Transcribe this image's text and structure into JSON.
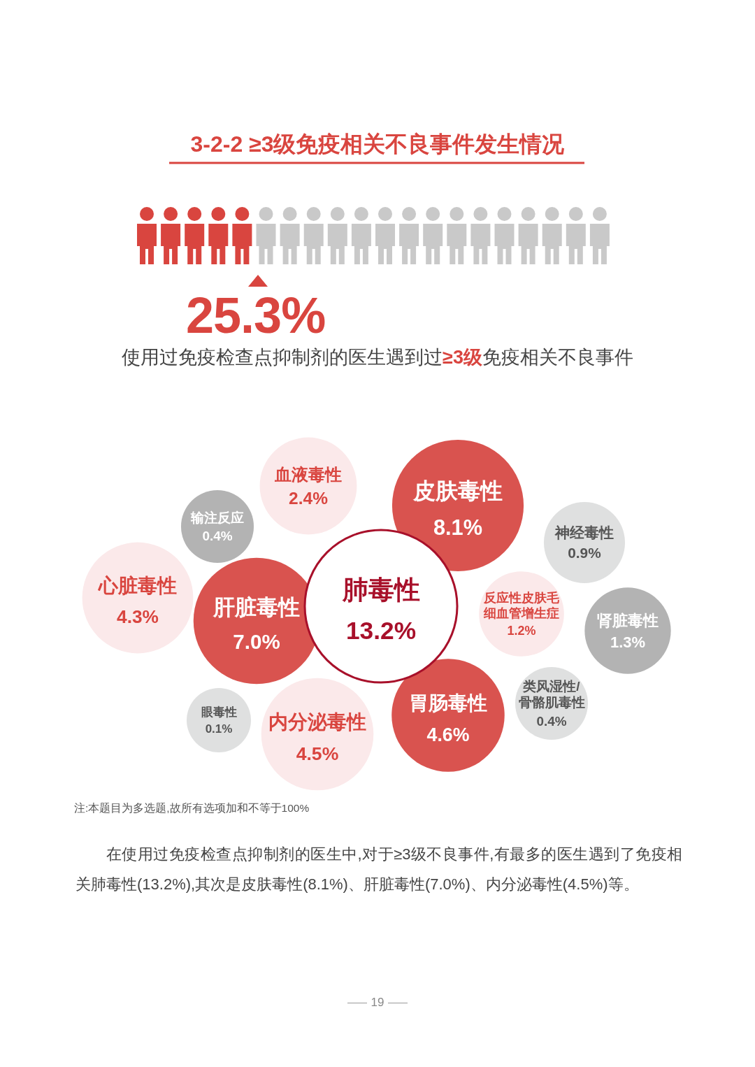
{
  "chart_data": {
    "type": "other",
    "title": "3-2-2 ≥3级免疫相关不良事件发生情况",
    "categories": [
      "血液毒性",
      "皮肤毒性",
      "输注反应",
      "神经毒性",
      "心脏毒性",
      "肝脏毒性",
      "肺毒性",
      "反应性皮肤毛细血管增生症",
      "肾脏毒性",
      "类风湿性/骨骼肌毒性",
      "眼毒性",
      "内分泌毒性",
      "胃肠毒性"
    ],
    "values": [
      2.4,
      8.1,
      0.4,
      0.9,
      4.3,
      7.0,
      13.2,
      1.2,
      1.3,
      0.4,
      0.1,
      4.5,
      4.6
    ],
    "value_labels": [
      "2.4%",
      "8.1%",
      "0.4%",
      "0.9%",
      "4.3%",
      "7.0%",
      "13.2%",
      "1.2%",
      "1.3%",
      "0.4%",
      "0.1%",
      "4.5%",
      "4.6%"
    ],
    "colors": [
      "#fbe9ea",
      "#d9534f",
      "#b3b3b3",
      "#dfe0e0",
      "#fbe9ea",
      "#d9534f",
      "#ffffff",
      "#fbe9ea",
      "#b3b3b3",
      "#dfe0e0",
      "#dfe0e0",
      "#fbe9ea",
      "#d9534f"
    ],
    "annotations": [
      "25.3%",
      "使用过免疫检查点抑制剂的医生遇到过**≥3级**免疫相关不良事件",
      "注:本题目为多选题,故所有选项加和不等于100%",
      "在使用过免疫检查点抑制剂的医生中,对于≥3级不良事件,有最多的医生遇到了免疫相关肺毒性(13.2%),其次是皮肤毒性(8.1%)、肝脏毒性(7.0%)、内分泌毒性(4.5%)等。",
      "19"
    ]
  }
}
